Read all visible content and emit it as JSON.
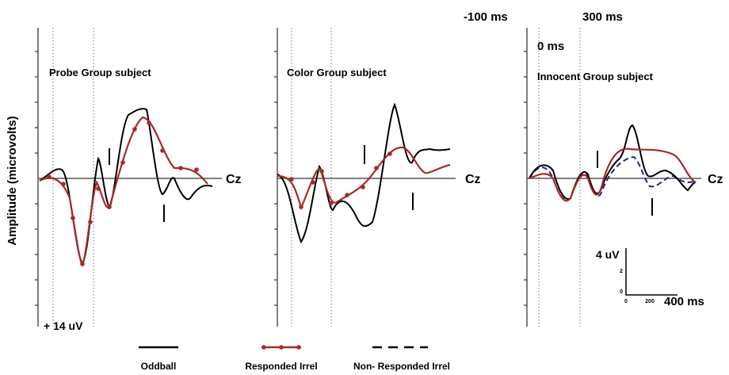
{
  "header": {
    "time_labels": [
      "-100 ms",
      "300 ms",
      "0 ms"
    ],
    "y_axis_label": "Amplitude (microvolts)"
  },
  "panels": [
    {
      "title": "Probe Group subject",
      "electrode": "Cz",
      "amplitude_label": "+ 14 uV"
    },
    {
      "title": "Color Group subject",
      "electrode": "Cz"
    },
    {
      "title": "Innocent Group subject",
      "electrode": "Cz"
    }
  ],
  "scale_bar": {
    "amplitude": "4 uV",
    "y_ticks": [
      "2",
      "0"
    ],
    "x_ticks": [
      "0",
      "200"
    ],
    "time": "400 ms"
  },
  "legend": [
    "Oddball",
    "Responded Irrel",
    "Non- Responded Irrel"
  ]
}
